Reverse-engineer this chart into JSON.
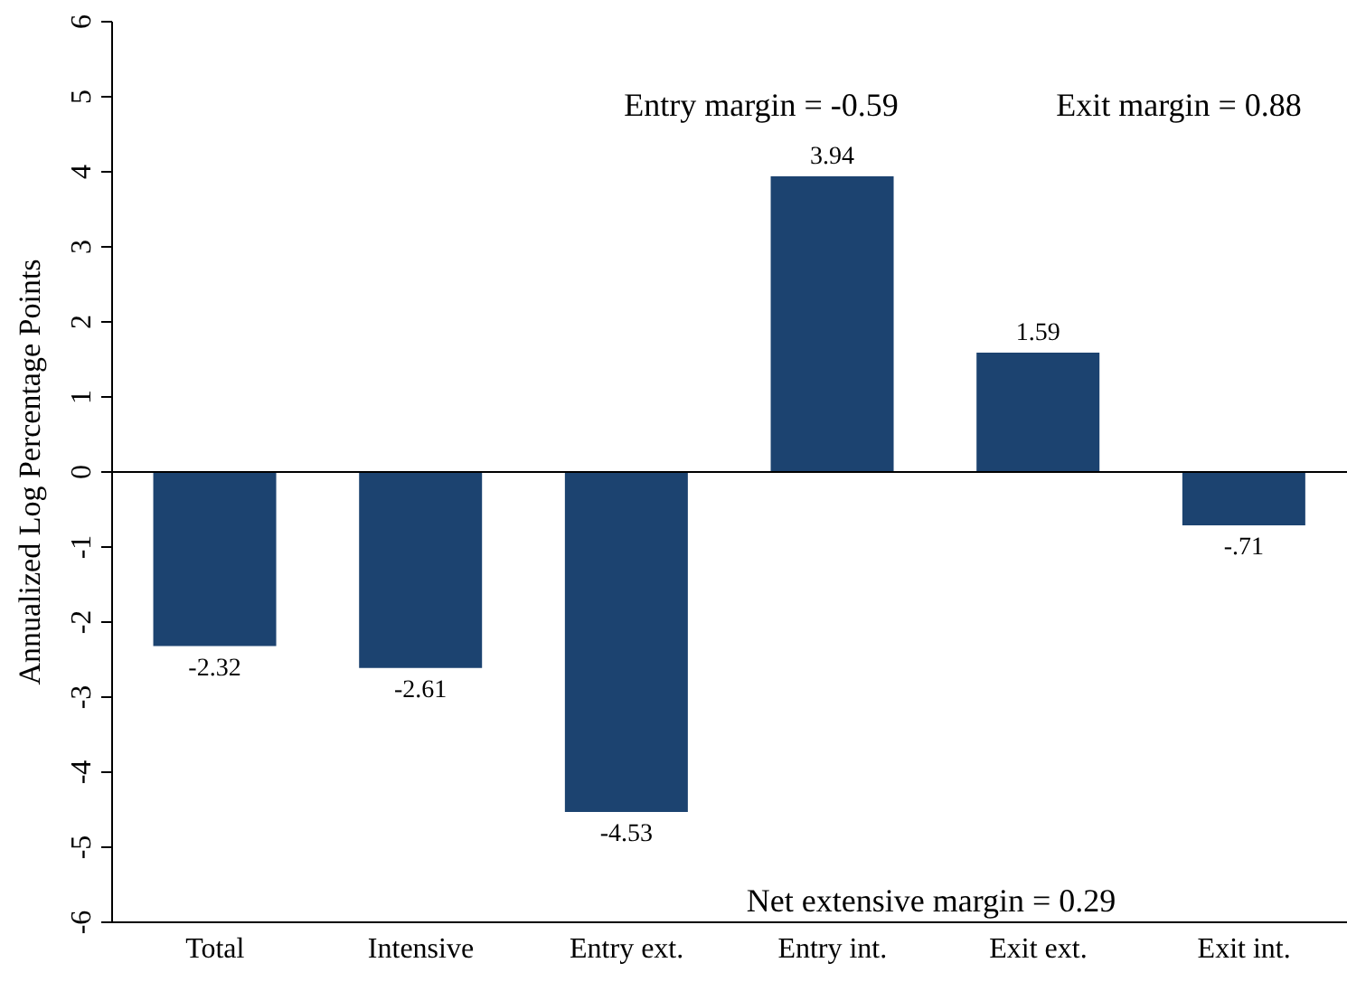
{
  "chart_data": {
    "type": "bar",
    "ylabel": "Annualized Log Percentage Points",
    "categories": [
      "Total",
      "Intensive",
      "Entry ext.",
      "Entry int.",
      "Exit ext.",
      "Exit int."
    ],
    "values": [
      -2.32,
      -2.61,
      -4.53,
      3.94,
      1.59,
      -0.71
    ],
    "value_labels": [
      "-2.32",
      "-2.61",
      "-4.53",
      "3.94",
      "1.59",
      "-.71"
    ],
    "color": "#1c4370",
    "ylim": [
      -6,
      6
    ],
    "yticks": [
      -6,
      -5,
      -4,
      -3,
      -2,
      -1,
      0,
      1,
      2,
      3,
      4,
      5,
      6
    ],
    "ref_lines": [
      {
        "axis": "y",
        "value": 0,
        "color": "#000000"
      }
    ],
    "annotations": [
      "Entry margin = -0.59",
      "Exit margin = 0.88",
      "Net extensive margin = 0.29"
    ],
    "grid": false,
    "legend": false
  }
}
